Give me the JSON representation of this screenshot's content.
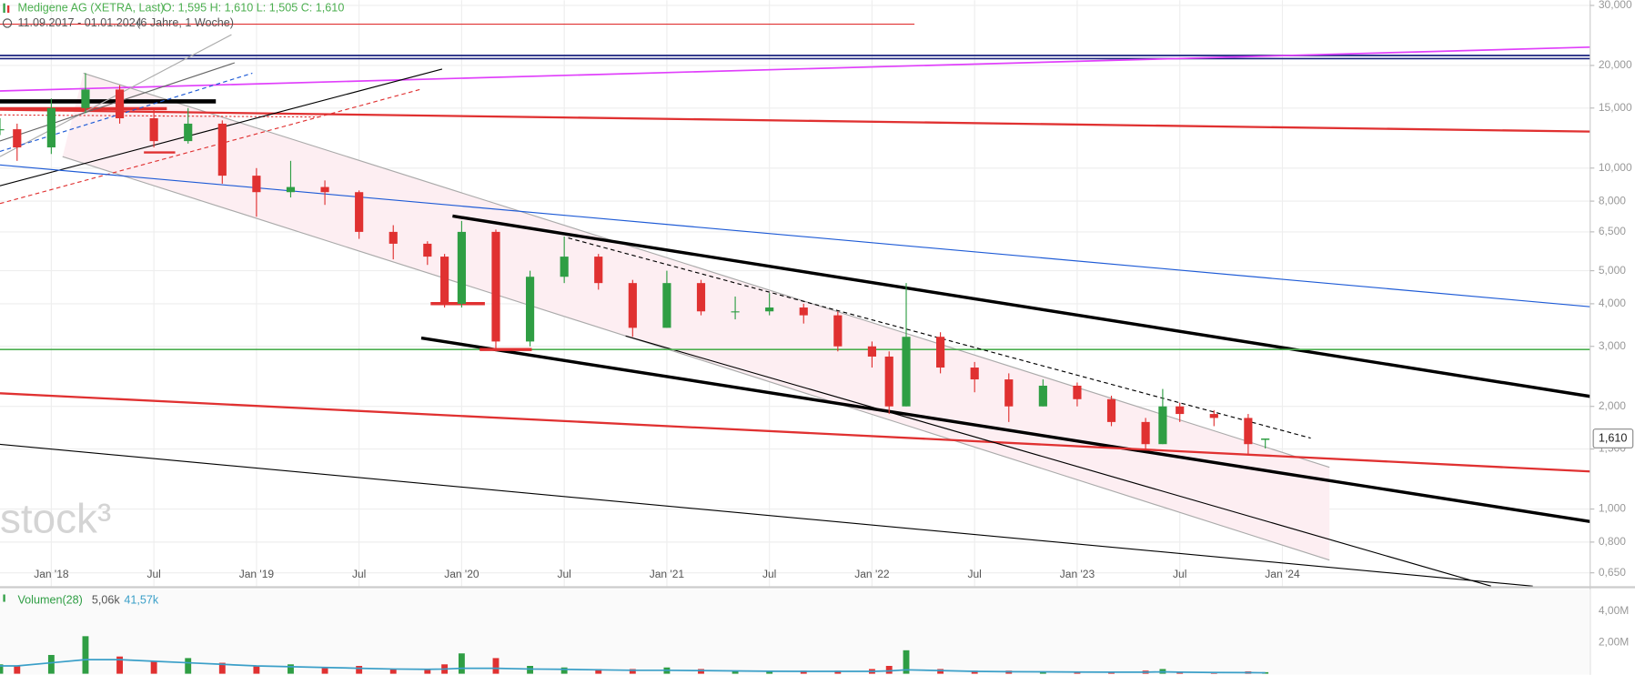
{
  "chart_data": [
    {
      "type": "candlestick",
      "title": "Medigene AG (XETRA, Last)",
      "subtitle": "O: 1,595  H: 1,610  L: 1,505  C: 1,610",
      "date_range": "11.09.2017 - 01.01.2024",
      "period": "(6 Jahre, 1 Woche)",
      "last_label": "1,610",
      "last_value": 1.61,
      "watermark": "stock³",
      "log": true,
      "grid": true,
      "colors": {
        "up": "#2f9e44",
        "down": "#e03131"
      },
      "x": [
        "2017-10",
        "2017-11",
        "2018-01",
        "2018-03",
        "2018-05",
        "2018-07",
        "2018-09",
        "2018-11",
        "2019-01",
        "2019-03",
        "2019-05",
        "2019-07",
        "2019-09",
        "2019-11",
        "2019-12",
        "2020-01",
        "2020-03",
        "2020-05",
        "2020-07",
        "2020-09",
        "2020-11",
        "2021-01",
        "2021-03",
        "2021-05",
        "2021-07",
        "2021-09",
        "2021-11",
        "2022-01",
        "2022-02",
        "2022-03",
        "2022-05",
        "2022-07",
        "2022-09",
        "2022-11",
        "2023-01",
        "2023-03",
        "2023-05",
        "2023-06",
        "2023-07",
        "2023-09",
        "2023-11",
        "2023-12"
      ],
      "open": [
        13,
        13,
        11.5,
        15,
        17,
        14,
        12,
        13.5,
        9.5,
        8.5,
        8.8,
        8.5,
        6.5,
        6,
        5.5,
        4,
        6.5,
        3.1,
        4.8,
        5.5,
        4.6,
        3.4,
        4.6,
        3.8,
        3.8,
        3.9,
        3.7,
        3,
        2.8,
        2.0,
        3.2,
        2.6,
        2.4,
        2.0,
        2.3,
        2.1,
        1.8,
        1.55,
        2.0,
        1.9,
        1.85,
        1.595
      ],
      "high": [
        14,
        13.5,
        16,
        19,
        17.5,
        15,
        15,
        13.8,
        10,
        10.5,
        9.2,
        8.6,
        6.8,
        6.1,
        5.6,
        7,
        6.6,
        5,
        6.3,
        5.6,
        4.7,
        5,
        4.7,
        4.2,
        4.3,
        4,
        3.8,
        3.1,
        2.9,
        4.6,
        3.3,
        2.7,
        2.5,
        2.4,
        2.35,
        2.15,
        1.85,
        2.25,
        2.05,
        1.95,
        1.9,
        1.61
      ],
      "low": [
        12.5,
        10.5,
        11,
        14.5,
        13.5,
        11.5,
        11.8,
        9,
        7.2,
        8.2,
        7.8,
        6.2,
        5.4,
        5.2,
        3.9,
        3.9,
        2.9,
        3,
        4.6,
        4.4,
        3.2,
        3.4,
        3.7,
        3.6,
        3.7,
        3.5,
        2.9,
        2.6,
        1.9,
        2.0,
        2.5,
        2.2,
        1.8,
        2.0,
        2.0,
        1.75,
        1.5,
        1.55,
        1.8,
        1.75,
        1.45,
        1.505
      ],
      "close": [
        13,
        11.5,
        15,
        17,
        14,
        12,
        13.5,
        9.5,
        8.5,
        8.8,
        8.5,
        6.5,
        6,
        5.5,
        4,
        6.5,
        3.1,
        4.8,
        5.5,
        4.6,
        3.4,
        4.6,
        3.8,
        3.8,
        3.9,
        3.7,
        3,
        2.8,
        2.0,
        3.2,
        2.6,
        2.4,
        2.0,
        2.3,
        2.1,
        1.8,
        1.55,
        2.0,
        1.9,
        1.85,
        1.55,
        1.61
      ],
      "xlim": [
        "2017-10",
        "2025-07"
      ],
      "xticks": [
        {
          "value": "2018-01",
          "label": "Jan '18"
        },
        {
          "value": "2018-07",
          "label": "Jul"
        },
        {
          "value": "2019-01",
          "label": "Jan '19"
        },
        {
          "value": "2019-07",
          "label": "Jul"
        },
        {
          "value": "2020-01",
          "label": "Jan '20"
        },
        {
          "value": "2020-07",
          "label": "Jul"
        },
        {
          "value": "2021-01",
          "label": "Jan '21"
        },
        {
          "value": "2021-07",
          "label": "Jul"
        },
        {
          "value": "2022-01",
          "label": "Jan '22"
        },
        {
          "value": "2022-07",
          "label": "Jul"
        },
        {
          "value": "2023-01",
          "label": "Jan '23"
        },
        {
          "value": "2023-07",
          "label": "Jul"
        },
        {
          "value": "2024-01",
          "label": "Jan '24"
        }
      ],
      "ylim": [
        0.594,
        31.07
      ],
      "yticks": [
        {
          "value": 30,
          "label": "30,000"
        },
        {
          "value": 20,
          "label": "20,000"
        },
        {
          "value": 15,
          "label": "15,000"
        },
        {
          "value": 10,
          "label": "10,000"
        },
        {
          "value": 8,
          "label": "8,000"
        },
        {
          "value": 6.5,
          "label": "6,500"
        },
        {
          "value": 5,
          "label": "5,000"
        },
        {
          "value": 4,
          "label": "4,000"
        },
        {
          "value": 3,
          "label": "3,000"
        },
        {
          "value": 2,
          "label": "2,000"
        },
        {
          "value": 1.5,
          "label": "1,500"
        },
        {
          "value": 1,
          "label": "1,000"
        },
        {
          "value": 0.8,
          "label": "0,800"
        },
        {
          "value": 0.65,
          "label": "0,650"
        }
      ]
    },
    {
      "type": "volume",
      "title": "Volumen(28)",
      "stats": [
        "5,06k",
        "41,57k"
      ],
      "values": [
        0.6,
        0.5,
        1.2,
        2.4,
        1.1,
        0.8,
        1.0,
        0.7,
        0.5,
        0.6,
        0.4,
        0.5,
        0.3,
        0.3,
        0.6,
        1.3,
        1.0,
        0.5,
        0.4,
        0.3,
        0.3,
        0.4,
        0.3,
        0.2,
        0.2,
        0.2,
        0.2,
        0.3,
        0.5,
        1.5,
        0.3,
        0.2,
        0.2,
        0.15,
        0.15,
        0.15,
        0.2,
        0.3,
        0.15,
        0.1,
        0.15,
        0.1
      ],
      "ma": [
        0.5,
        0.5,
        0.7,
        0.9,
        0.9,
        0.8,
        0.7,
        0.6,
        0.5,
        0.45,
        0.4,
        0.35,
        0.3,
        0.28,
        0.3,
        0.35,
        0.35,
        0.3,
        0.28,
        0.25,
        0.22,
        0.22,
        0.2,
        0.18,
        0.16,
        0.15,
        0.15,
        0.15,
        0.18,
        0.25,
        0.2,
        0.15,
        0.13,
        0.12,
        0.11,
        0.1,
        0.1,
        0.12,
        0.1,
        0.08,
        0.07,
        0.06
      ],
      "ma_color": "#3a9fc8",
      "ylim": [
        0,
        5.4
      ],
      "yticks": [
        {
          "value": 4,
          "label": "4,00M"
        },
        {
          "value": 2,
          "label": "2,00M"
        }
      ]
    }
  ]
}
